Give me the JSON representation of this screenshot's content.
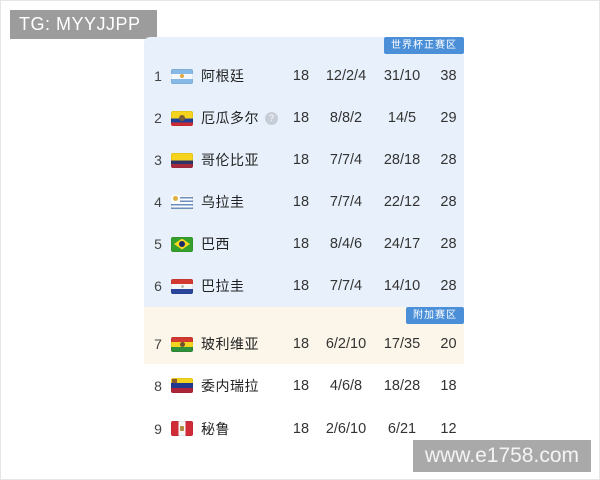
{
  "watermark_top": "TG: MYYJJPP",
  "watermark_bottom": "www.e1758.com",
  "colors": {
    "badge_blue": "#4b8fd8",
    "zone_worldcup_bg": "#e8f1fb",
    "zone_playoff_bg": "#fbf6e9",
    "zone_plain_bg": "#ffffff",
    "watermark_gray": "#a9a9a9",
    "tg_bar_gray": "#9c9c9c"
  },
  "table": {
    "sections": [
      {
        "kind": "worldcup",
        "zone_label": "世界杯正赛区",
        "bg": "zone_worldcup_bg",
        "rows": [
          {
            "pos": "1",
            "team": "阿根廷",
            "flag": "argentina",
            "played": "18",
            "record": "12/2/4",
            "goals": "31/10",
            "points": "38"
          },
          {
            "pos": "2",
            "team": "厄瓜多尔",
            "flag": "ecuador",
            "played": "18",
            "record": "8/8/2",
            "goals": "14/5",
            "points": "29",
            "note_icon": "question"
          },
          {
            "pos": "3",
            "team": "哥伦比亚",
            "flag": "colombia",
            "played": "18",
            "record": "7/7/4",
            "goals": "28/18",
            "points": "28"
          },
          {
            "pos": "4",
            "team": "乌拉圭",
            "flag": "uruguay",
            "played": "18",
            "record": "7/7/4",
            "goals": "22/12",
            "points": "28"
          },
          {
            "pos": "5",
            "team": "巴西",
            "flag": "brazil",
            "played": "18",
            "record": "8/4/6",
            "goals": "24/17",
            "points": "28"
          },
          {
            "pos": "6",
            "team": "巴拉圭",
            "flag": "paraguay",
            "played": "18",
            "record": "7/7/4",
            "goals": "14/10",
            "points": "28"
          }
        ]
      },
      {
        "kind": "playoff",
        "zone_label": "附加赛区",
        "bg": "zone_playoff_bg",
        "rows": [
          {
            "pos": "7",
            "team": "玻利维亚",
            "flag": "bolivia",
            "played": "18",
            "record": "6/2/10",
            "goals": "17/35",
            "points": "20"
          }
        ]
      },
      {
        "kind": "plain",
        "zone_label": null,
        "bg": "zone_plain_bg",
        "rows": [
          {
            "pos": "8",
            "team": "委内瑞拉",
            "flag": "venezuela",
            "played": "18",
            "record": "4/6/8",
            "goals": "18/28",
            "points": "18"
          },
          {
            "pos": "9",
            "team": "秘鲁",
            "flag": "peru",
            "played": "18",
            "record": "2/6/10",
            "goals": "6/21",
            "points": "12"
          }
        ]
      }
    ]
  }
}
